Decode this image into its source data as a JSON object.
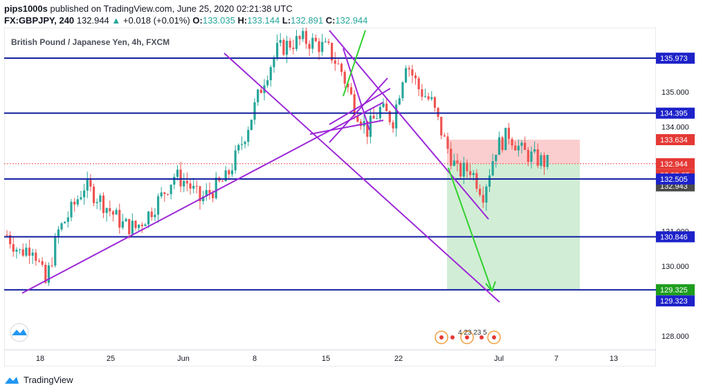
{
  "header": {
    "author": "pips1000s",
    "published_text": "published on TradingView.com, June 25, 2020 02:21:38 UTC",
    "symbol": "FX:GBPJPY, 240",
    "last": "132.944",
    "change": "+0.018 (+0.01%)",
    "ohlc": {
      "o_label": "O:",
      "o": "133.035",
      "h_label": "H:",
      "h": "133.144",
      "l_label": "L:",
      "l": "132.891",
      "c_label": "C:",
      "c": "132.944"
    }
  },
  "chart_title": "British Pound / Japanese Yen, 4h, FXCM",
  "footer": {
    "brand": "TradingView"
  },
  "colors": {
    "up": "#26a69a",
    "down": "#ef5350",
    "hline": "#0d1b9e",
    "trend": "#9c27d8",
    "arrow": "#2fd12f",
    "stop_zone": "#f9c5c5",
    "target_zone": "#cdebd0",
    "badge_blue": "#1d22c9",
    "badge_red": "#e53935",
    "badge_green": "#1e9e1e",
    "badge_gray": "#4a4a4a"
  },
  "chart_data": {
    "type": "candlestick",
    "title": "British Pound / Japanese Yen, 4h, FXCM",
    "xlabel": "",
    "ylabel": "",
    "ylim": [
      127.6,
      136.85
    ],
    "x_ticks": [
      "18",
      "25",
      "Jun",
      "8",
      "15",
      "22",
      "Jul",
      "7",
      "13"
    ],
    "y_ticks": [
      "135.000",
      "134.000",
      "131.000",
      "130.000",
      "128.000"
    ],
    "horizontal_levels": [
      "135.973",
      "134.395",
      "132.505",
      "130.846",
      "129.323"
    ],
    "last_price": "132.944",
    "countdown": "02:38:25",
    "badges": {
      "stop": "133.634",
      "entry": "132.943",
      "target": "129.325"
    },
    "price_path": [
      [
        0,
        130.9
      ],
      [
        4,
        130.4
      ],
      [
        8,
        130.6
      ],
      [
        12,
        129.5
      ],
      [
        16,
        131.0
      ],
      [
        20,
        131.6
      ],
      [
        24,
        132.3
      ],
      [
        28,
        132.0
      ],
      [
        32,
        131.6
      ],
      [
        36,
        131.2
      ],
      [
        40,
        131.1
      ],
      [
        44,
        131.5
      ],
      [
        48,
        132.0
      ],
      [
        52,
        132.6
      ],
      [
        56,
        132.4
      ],
      [
        60,
        131.9
      ],
      [
        64,
        132.2
      ],
      [
        68,
        132.5
      ],
      [
        72,
        133.3
      ],
      [
        76,
        134.3
      ],
      [
        80,
        135.4
      ],
      [
        84,
        136.2
      ],
      [
        88,
        136.4
      ],
      [
        92,
        136.5
      ],
      [
        96,
        136.4
      ],
      [
        100,
        136.2
      ],
      [
        104,
        135.6
      ],
      [
        108,
        134.6
      ],
      [
        112,
        133.9
      ],
      [
        116,
        134.5
      ],
      [
        120,
        134.2
      ],
      [
        124,
        135.9
      ],
      [
        128,
        135.1
      ],
      [
        132,
        134.7
      ],
      [
        136,
        133.6
      ],
      [
        140,
        132.7
      ],
      [
        144,
        132.8
      ],
      [
        148,
        132.1
      ],
      [
        152,
        133.4
      ],
      [
        156,
        133.8
      ],
      [
        160,
        133.3
      ],
      [
        164,
        133.1
      ],
      [
        168,
        132.95
      ]
    ],
    "trade_projection": {
      "entry": 132.944,
      "stop": 133.634,
      "target": 129.325
    }
  },
  "watermark_digits": "4 23 23 5"
}
